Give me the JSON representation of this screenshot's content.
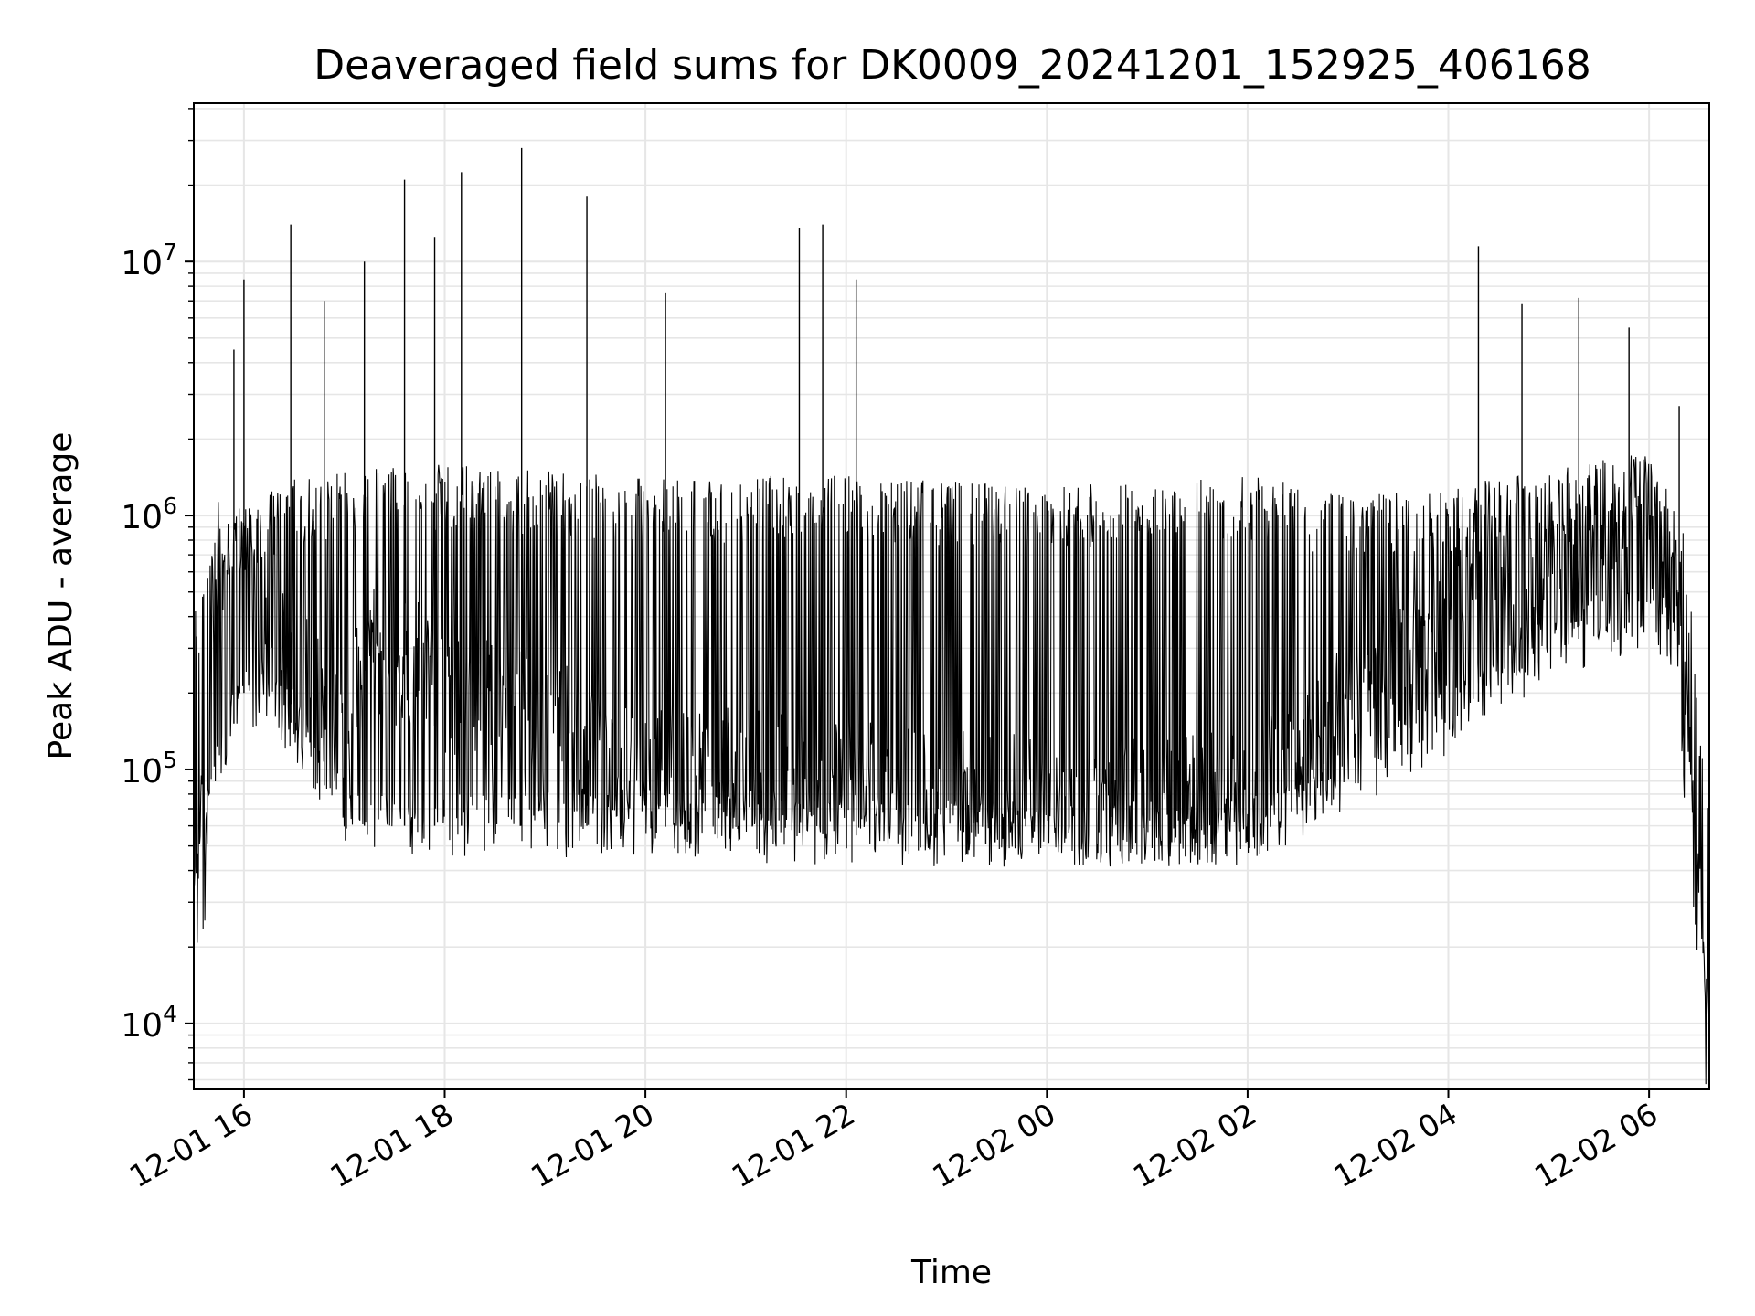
{
  "chart_data": {
    "type": "line",
    "title": "Deaveraged field sums for DK0009_20241201_152925_406168",
    "xlabel": "Time",
    "ylabel": "Peak ADU - average",
    "yscale": "log",
    "grid": true,
    "grid_color": "#e6e6e6",
    "line_color": "#000000",
    "xlim": [
      "2024-12-01 15:30",
      "2024-12-02 06:36"
    ],
    "ylim": [
      5500,
      42000000
    ],
    "x_ticks": [
      {
        "value": "2024-12-01 16:00",
        "label": "12-01 16"
      },
      {
        "value": "2024-12-01 18:00",
        "label": "12-01 18"
      },
      {
        "value": "2024-12-01 20:00",
        "label": "12-01 20"
      },
      {
        "value": "2024-12-01 22:00",
        "label": "12-01 22"
      },
      {
        "value": "2024-12-02 00:00",
        "label": "12-02 00"
      },
      {
        "value": "2024-12-02 02:00",
        "label": "12-02 02"
      },
      {
        "value": "2024-12-02 04:00",
        "label": "12-02 04"
      },
      {
        "value": "2024-12-02 06:00",
        "label": "12-02 06"
      }
    ],
    "y_ticks": [
      {
        "value": 10000,
        "base": "10",
        "exp": "4"
      },
      {
        "value": 100000,
        "base": "10",
        "exp": "5"
      },
      {
        "value": 1000000,
        "base": "10",
        "exp": "6"
      },
      {
        "value": 10000000,
        "base": "10",
        "exp": "7"
      }
    ],
    "series": [
      {
        "points": [
          [
            "2024-12-01 15:30",
            300000
          ],
          [
            "2024-12-01 15:32",
            30000
          ],
          [
            "2024-12-01 15:34",
            90000
          ],
          [
            "2024-12-01 15:36",
            25000
          ],
          [
            "2024-12-01 15:38",
            120000
          ],
          [
            "2024-12-01 15:40",
            400000
          ],
          [
            "2024-12-01 15:45",
            700000
          ],
          [
            "2024-12-01 15:50",
            450000
          ],
          [
            "2024-12-01 15:55",
            900000
          ],
          [
            "2024-12-01 16:00",
            600000
          ],
          [
            "2024-12-01 16:10",
            350000
          ],
          [
            "2024-12-01 16:20",
            300000
          ],
          [
            "2024-12-01 16:30",
            250000
          ],
          [
            "2024-12-01 16:45",
            200000
          ],
          [
            "2024-12-01 17:00",
            150000
          ],
          [
            "2024-12-01 17:15",
            300000
          ],
          [
            "2024-12-01 17:30",
            250000
          ],
          [
            "2024-12-01 17:45",
            280000
          ],
          [
            "2024-12-01 18:00",
            200000
          ],
          [
            "2024-12-01 18:30",
            180000
          ],
          [
            "2024-12-01 19:00",
            170000
          ],
          [
            "2024-12-01 19:30",
            130000
          ],
          [
            "2024-12-01 20:00",
            110000
          ],
          [
            "2024-12-01 20:30",
            100000
          ],
          [
            "2024-12-01 21:00",
            100000
          ],
          [
            "2024-12-01 21:30",
            95000
          ],
          [
            "2024-12-01 22:00",
            90000
          ],
          [
            "2024-12-01 22:30",
            85000
          ],
          [
            "2024-12-01 23:00",
            80000
          ],
          [
            "2024-12-01 23:30",
            80000
          ],
          [
            "2024-12-02 00:00",
            75000
          ],
          [
            "2024-12-02 00:30",
            75000
          ],
          [
            "2024-12-02 01:00",
            75000
          ],
          [
            "2024-12-02 01:30",
            80000
          ],
          [
            "2024-12-02 02:00",
            80000
          ],
          [
            "2024-12-02 02:30",
            120000
          ],
          [
            "2024-12-02 03:00",
            180000
          ],
          [
            "2024-12-02 03:30",
            250000
          ],
          [
            "2024-12-02 04:00",
            350000
          ],
          [
            "2024-12-02 04:30",
            500000
          ],
          [
            "2024-12-02 05:00",
            550000
          ],
          [
            "2024-12-02 05:30",
            700000
          ],
          [
            "2024-12-02 06:00",
            800000
          ],
          [
            "2024-12-02 06:15",
            600000
          ],
          [
            "2024-12-02 06:20",
            150000
          ],
          [
            "2024-12-02 06:25",
            60000
          ],
          [
            "2024-12-02 06:30",
            20000
          ],
          [
            "2024-12-02 06:34",
            8000
          ],
          [
            "2024-12-02 06:36",
            30000
          ]
        ],
        "envelope": [
          [
            "2024-12-01 15:30",
            35000,
            400000
          ],
          [
            "2024-12-01 15:45",
            100000,
            900000
          ],
          [
            "2024-12-01 16:00",
            200000,
            1100000
          ],
          [
            "2024-12-01 16:30",
            150000,
            1400000
          ],
          [
            "2024-12-01 17:00",
            60000,
            1500000
          ],
          [
            "2024-12-01 18:00",
            60000,
            1600000
          ],
          [
            "2024-12-01 20:00",
            60000,
            1400000
          ],
          [
            "2024-12-01 22:00",
            55000,
            1450000
          ],
          [
            "2024-12-02 00:00",
            55000,
            1300000
          ],
          [
            "2024-12-02 02:00",
            55000,
            1450000
          ],
          [
            "2024-12-02 03:00",
            90000,
            1200000
          ],
          [
            "2024-12-02 04:00",
            150000,
            1300000
          ],
          [
            "2024-12-02 05:00",
            300000,
            1500000
          ],
          [
            "2024-12-02 06:00",
            400000,
            1800000
          ],
          [
            "2024-12-02 06:20",
            300000,
            1000000
          ],
          [
            "2024-12-02 06:36",
            10000,
            80000
          ]
        ],
        "spikes": [
          [
            "2024-12-01 15:54",
            4500000
          ],
          [
            "2024-12-01 16:00",
            8500000
          ],
          [
            "2024-12-01 16:28",
            14000000
          ],
          [
            "2024-12-01 16:48",
            7000000
          ],
          [
            "2024-12-01 17:12",
            10000000
          ],
          [
            "2024-12-01 17:36",
            21000000
          ],
          [
            "2024-12-01 17:54",
            12500000
          ],
          [
            "2024-12-01 18:10",
            22500000
          ],
          [
            "2024-12-01 18:46",
            28000000
          ],
          [
            "2024-12-01 19:25",
            18000000
          ],
          [
            "2024-12-01 20:12",
            7500000
          ],
          [
            "2024-12-01 21:32",
            13500000
          ],
          [
            "2024-12-01 21:46",
            14000000
          ],
          [
            "2024-12-01 22:06",
            8500000
          ],
          [
            "2024-12-02 04:18",
            11500000
          ],
          [
            "2024-12-02 04:44",
            6800000
          ],
          [
            "2024-12-02 05:18",
            7200000
          ],
          [
            "2024-12-02 05:48",
            5500000
          ],
          [
            "2024-12-02 06:18",
            2700000
          ]
        ]
      }
    ]
  }
}
